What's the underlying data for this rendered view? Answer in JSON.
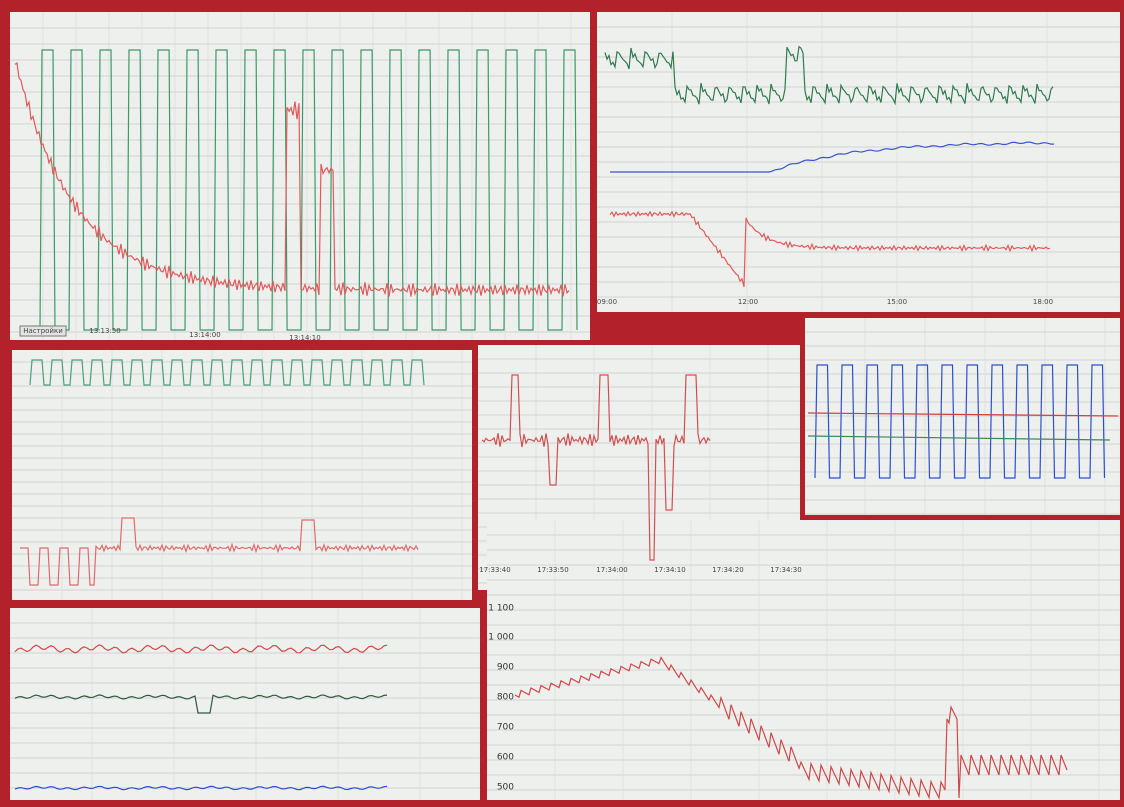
{
  "top_left": {
    "button": "Настройки",
    "x_labels": [
      "13:13:50",
      "13:14:00",
      "13:14:10"
    ]
  },
  "top_right": {
    "x_labels": [
      "09:00",
      "12:00",
      "15:00",
      "18:00"
    ]
  },
  "middle_center": {
    "x_labels": [
      "17:33:40",
      "17:33:50",
      "17:34:00",
      "17:34:10",
      "17:34:20",
      "17:34:30"
    ]
  },
  "bottom_right": {
    "y_labels": [
      "1 100",
      "1 000",
      "900",
      "800",
      "700",
      "600",
      "500"
    ]
  }
}
